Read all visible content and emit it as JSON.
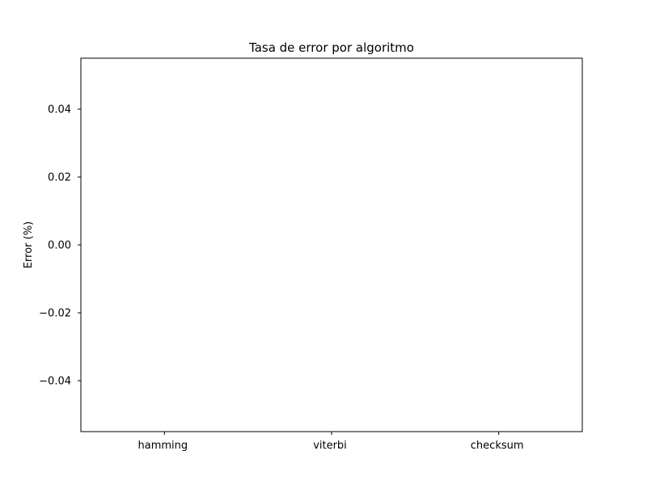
{
  "chart_data": {
    "type": "bar",
    "title": "Tasa de error por algoritmo",
    "xlabel": "",
    "ylabel": "Error (%)",
    "categories": [
      "hamming",
      "viterbi",
      "checksum"
    ],
    "values": [
      0,
      0,
      0
    ],
    "ylim": [
      -0.055,
      0.055
    ],
    "yticks": [
      0.04,
      0.02,
      0.0,
      -0.02,
      -0.04
    ],
    "ytick_labels": [
      "0.04",
      "0.02",
      "0.00",
      "−0.02",
      "−0.04"
    ],
    "grid": false,
    "legend": "none"
  }
}
